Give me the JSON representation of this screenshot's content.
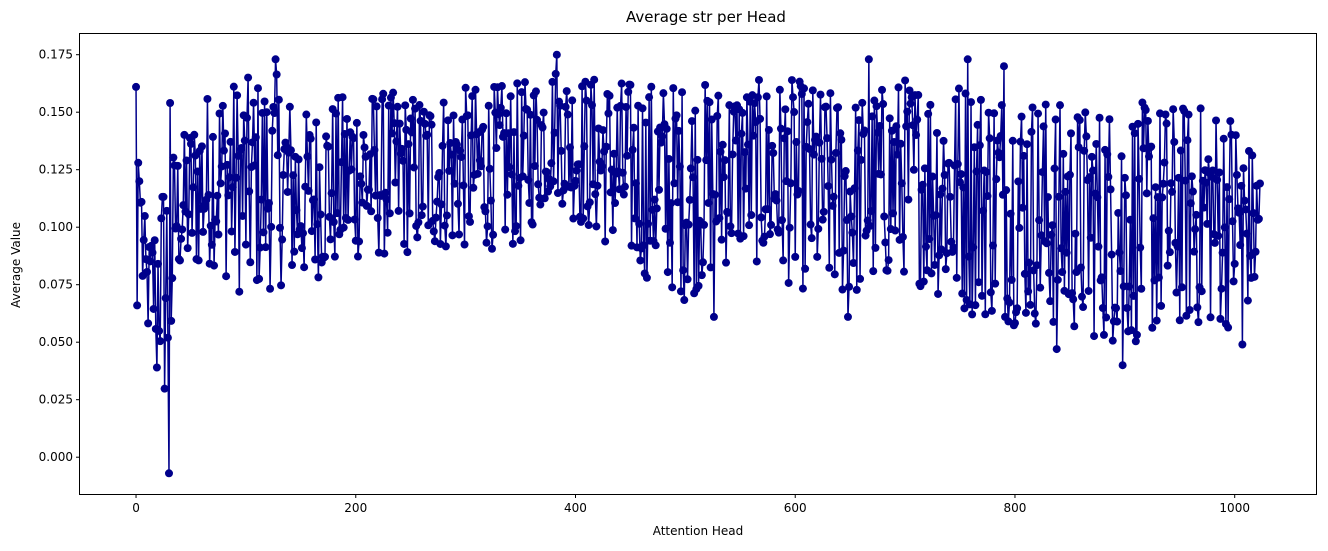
{
  "chart_data": {
    "type": "line",
    "title": "Average str per Head",
    "xlabel": "Attention Head",
    "ylabel": "Average Value",
    "xlim": [
      -51,
      1074
    ],
    "ylim": [
      -0.016,
      0.184
    ],
    "xticks": [
      0,
      200,
      400,
      600,
      800,
      1000
    ],
    "xtick_labels": [
      "0",
      "200",
      "400",
      "600",
      "800",
      "1000"
    ],
    "yticks": [
      0.0,
      0.025,
      0.05,
      0.075,
      0.1,
      0.125,
      0.15,
      0.175
    ],
    "ytick_labels": [
      "0.000",
      "0.025",
      "0.050",
      "0.075",
      "0.100",
      "0.125",
      "0.150",
      "0.175"
    ],
    "grid": false,
    "legend": "none",
    "marker": "circle",
    "series_color": "#00008b",
    "n_points": 1024,
    "x_start": 0,
    "x_step": 1,
    "envelope": {
      "x": [
        0,
        5,
        10,
        20,
        30,
        35,
        50,
        70,
        100,
        130,
        150,
        200,
        250,
        300,
        350,
        380,
        400,
        450,
        500,
        550,
        600,
        650,
        700,
        750,
        800,
        850,
        900,
        950,
        1000,
        1023
      ],
      "upper": [
        0.161,
        0.128,
        0.095,
        0.115,
        0.154,
        0.137,
        0.152,
        0.169,
        0.172,
        0.173,
        0.155,
        0.166,
        0.163,
        0.166,
        0.168,
        0.175,
        0.172,
        0.17,
        0.17,
        0.169,
        0.171,
        0.163,
        0.172,
        0.173,
        0.17,
        0.16,
        0.162,
        0.161,
        0.16,
        0.13
      ],
      "lower": [
        0.066,
        0.063,
        0.05,
        0.039,
        -0.007,
        0.073,
        0.073,
        0.078,
        0.061,
        0.068,
        0.069,
        0.08,
        0.083,
        0.085,
        0.086,
        0.111,
        0.097,
        0.078,
        0.061,
        0.083,
        0.067,
        0.061,
        0.073,
        0.055,
        0.05,
        0.047,
        0.04,
        0.049,
        0.049,
        0.066
      ]
    },
    "highlights": [
      {
        "x": 0,
        "y": 0.161
      },
      {
        "x": 1,
        "y": 0.066
      },
      {
        "x": 2,
        "y": 0.128
      },
      {
        "x": 3,
        "y": 0.12
      },
      {
        "x": 5,
        "y": 0.111
      },
      {
        "x": 19,
        "y": 0.039
      },
      {
        "x": 30,
        "y": -0.007
      },
      {
        "x": 31,
        "y": 0.154
      },
      {
        "x": 127,
        "y": 0.173
      },
      {
        "x": 383,
        "y": 0.175
      },
      {
        "x": 465,
        "y": 0.078
      },
      {
        "x": 526,
        "y": 0.061
      },
      {
        "x": 648,
        "y": 0.061
      },
      {
        "x": 667,
        "y": 0.173
      },
      {
        "x": 757,
        "y": 0.173
      },
      {
        "x": 790,
        "y": 0.17
      },
      {
        "x": 838,
        "y": 0.047
      },
      {
        "x": 898,
        "y": 0.04
      },
      {
        "x": 1007,
        "y": 0.049
      },
      {
        "x": 1023,
        "y": 0.119
      }
    ]
  }
}
